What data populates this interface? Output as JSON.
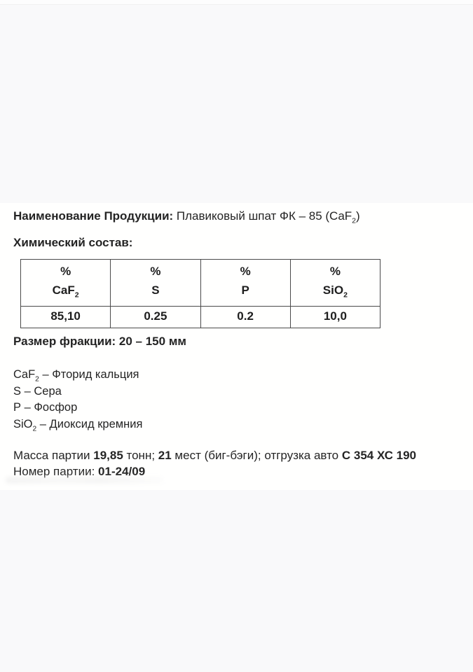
{
  "document": {
    "product": {
      "label": "Наименование Продукции:",
      "name_prefix": "Плавиковый шпат ФК – 85 (CaF",
      "name_sub": "2",
      "name_suffix": ")"
    },
    "composition": {
      "heading": "Химический состав:",
      "columns": [
        {
          "unit": "%",
          "formula": "CaF",
          "formula_sub": "2",
          "value": "85,10"
        },
        {
          "unit": "%",
          "formula": "S",
          "formula_sub": "",
          "value": "0.25"
        },
        {
          "unit": "%",
          "formula": "P",
          "formula_sub": "",
          "value": "0.2"
        },
        {
          "unit": "%",
          "formula": "SiO",
          "formula_sub": "2",
          "value": "10,0"
        }
      ]
    },
    "fraction": {
      "label": "Размер фракции:",
      "value": "20 – 150 мм"
    },
    "legend": [
      {
        "term": "CaF",
        "term_sub": "2",
        "definition": "– Фторид кальция"
      },
      {
        "term": "S",
        "term_sub": "",
        "definition": "– Сера"
      },
      {
        "term": "P",
        "term_sub": "",
        "definition": "– Фосфор"
      },
      {
        "term": "SiO",
        "term_sub": "2",
        "definition": "– Диоксид кремния"
      }
    ],
    "batch": {
      "mass_segments": [
        {
          "text": "Масса партии "
        },
        {
          "text": "19,85"
        },
        {
          "text": " тонн; "
        },
        {
          "text": "21"
        },
        {
          "text": " мест (биг-бэги); отгрузка авто "
        },
        {
          "text": "С 354 ХС 190"
        }
      ],
      "number_label": "Номер партии: ",
      "number_value": "01-24/09"
    }
  }
}
